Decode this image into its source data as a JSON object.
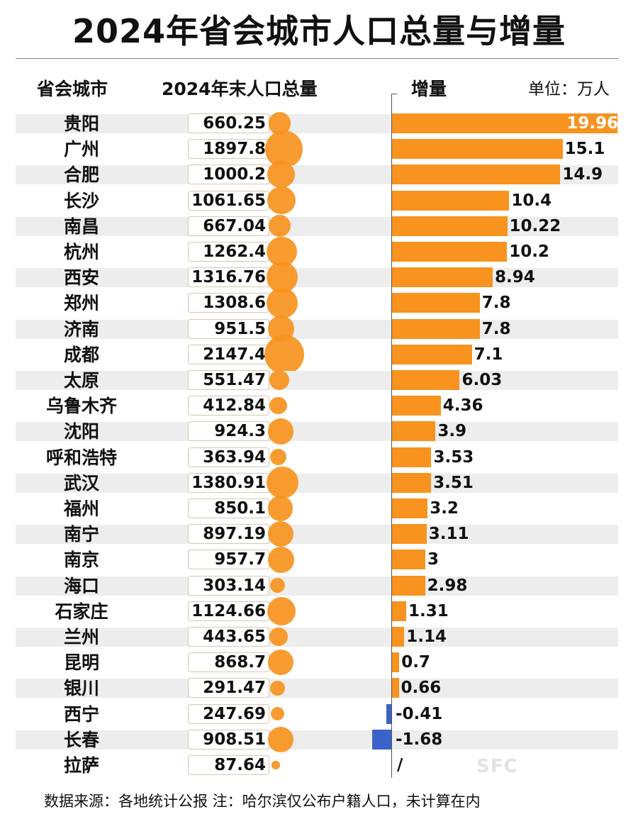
{
  "title": "2024年省会城市人口总量与增量",
  "header": {
    "city": "省会城市",
    "population": "2024年末人口总量",
    "increment": "增量",
    "unit": "单位：万人"
  },
  "footer": "数据来源：各地统计公报  注：哈尔滨仅公布户籍人口，未计算在内",
  "logo_text": "SFC",
  "colors": {
    "bubble": "#f7931e",
    "positive_bar": "#f7931e",
    "negative_bar": "#3a62c8",
    "row_band": "#ededed"
  },
  "chart_data": {
    "type": "bar",
    "title": "2024年省会城市人口总量与增量",
    "categories": [
      "贵阳",
      "广州",
      "合肥",
      "长沙",
      "南昌",
      "杭州",
      "西安",
      "郑州",
      "济南",
      "成都",
      "太原",
      "乌鲁木齐",
      "沈阳",
      "呼和浩特",
      "武汉",
      "福州",
      "南宁",
      "南京",
      "海口",
      "石家庄",
      "兰州",
      "昆明",
      "银川",
      "西宁",
      "长春",
      "拉萨"
    ],
    "series": [
      {
        "name": "2024年末人口总量",
        "values": [
          660.25,
          1897.8,
          1000.2,
          1061.65,
          667.04,
          1262.4,
          1316.76,
          1308.6,
          951.5,
          2147.4,
          551.47,
          412.84,
          924.3,
          363.94,
          1380.91,
          850.1,
          897.19,
          957.7,
          303.14,
          1124.66,
          443.65,
          868.7,
          291.47,
          247.69,
          908.51,
          87.64
        ],
        "labels": [
          "660.25",
          "1897.8",
          "1000.2",
          "1061.65",
          "667.04",
          "1262.4",
          "1316.76",
          "1308.6",
          "951.5",
          "2147.4",
          "551.47",
          "412.84",
          "924.3",
          "363.94",
          "1380.91",
          "850.1",
          "897.19",
          "957.7",
          "303.14",
          "1124.66",
          "443.65",
          "868.7",
          "291.47",
          "247.69",
          "908.51",
          "87.64"
        ]
      },
      {
        "name": "增量",
        "values": [
          19.96,
          15.1,
          14.9,
          10.4,
          10.22,
          10.2,
          8.94,
          7.8,
          7.8,
          7.1,
          6.03,
          4.36,
          3.9,
          3.53,
          3.51,
          3.2,
          3.11,
          3,
          2.98,
          1.31,
          1.14,
          0.7,
          0.66,
          -0.41,
          -1.68,
          null
        ],
        "labels": [
          "19.96",
          "15.1",
          "14.9",
          "10.4",
          "10.22",
          "10.2",
          "8.94",
          "7.8",
          "7.8",
          "7.1",
          "6.03",
          "4.36",
          "3.9",
          "3.53",
          "3.51",
          "3.2",
          "3.11",
          "3",
          "2.98",
          "1.31",
          "1.14",
          "0.7",
          "0.66",
          "-0.41",
          "-1.68",
          "/"
        ]
      }
    ],
    "xlim": [
      -2,
      20
    ],
    "grid": false,
    "legend": "none"
  }
}
